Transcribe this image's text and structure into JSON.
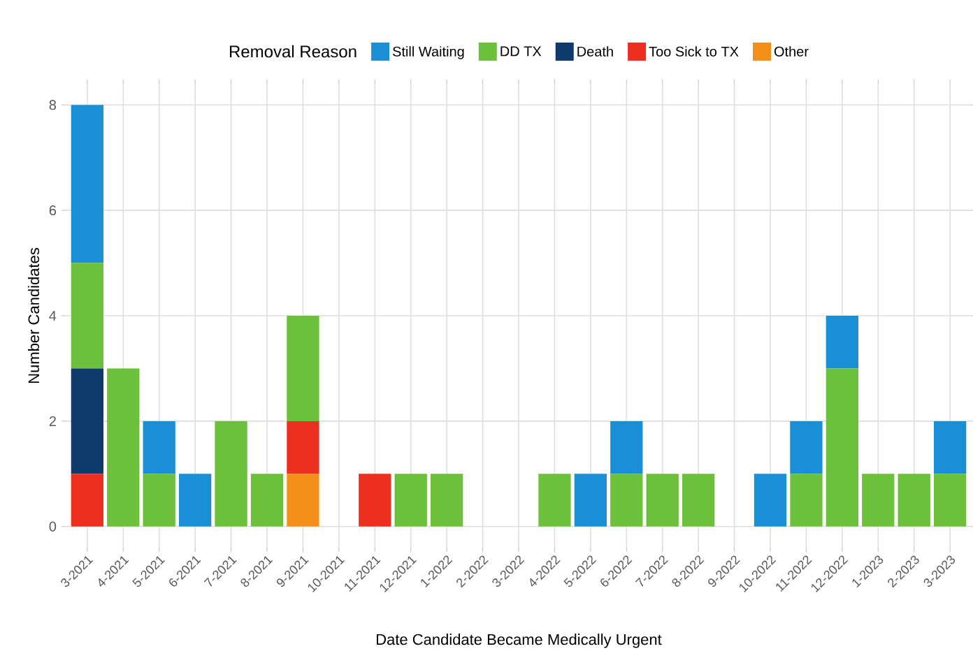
{
  "chart_data": {
    "type": "bar",
    "stacked": true,
    "xlabel": "Date Candidate Became Medically Urgent",
    "ylabel": "Number Candidates",
    "legend_title": "Removal Reason",
    "legend": "top",
    "grid": true,
    "categories": [
      "3-2021",
      "4-2021",
      "5-2021",
      "6-2021",
      "7-2021",
      "8-2021",
      "9-2021",
      "10-2021",
      "11-2021",
      "12-2021",
      "1-2022",
      "2-2022",
      "3-2022",
      "4-2022",
      "5-2022",
      "6-2022",
      "7-2022",
      "8-2022",
      "9-2022",
      "10-2022",
      "11-2022",
      "12-2022",
      "1-2023",
      "2-2023",
      "3-2023"
    ],
    "ylim": [
      -0.4,
      8.4
    ],
    "yticks": [
      0,
      2,
      4,
      6,
      8
    ],
    "series": [
      {
        "name": "Other",
        "color": "#f4901a",
        "values": [
          0,
          0,
          0,
          0,
          0,
          0,
          1,
          0,
          0,
          0,
          0,
          0,
          0,
          0,
          0,
          0,
          0,
          0,
          0,
          0,
          0,
          0,
          0,
          0,
          0
        ]
      },
      {
        "name": "Too Sick to TX",
        "color": "#ec2f1f",
        "values": [
          1,
          0,
          0,
          0,
          0,
          0,
          1,
          0,
          1,
          0,
          0,
          0,
          0,
          0,
          0,
          0,
          0,
          0,
          0,
          0,
          0,
          0,
          0,
          0,
          0
        ]
      },
      {
        "name": "Death",
        "color": "#0f3a6b",
        "values": [
          2,
          0,
          0,
          0,
          0,
          0,
          0,
          0,
          0,
          0,
          0,
          0,
          0,
          0,
          0,
          0,
          0,
          0,
          0,
          0,
          0,
          0,
          0,
          0,
          0
        ]
      },
      {
        "name": "DD TX",
        "color": "#6cc03c",
        "values": [
          2,
          3,
          1,
          0,
          2,
          1,
          2,
          0,
          0,
          1,
          1,
          0,
          0,
          1,
          0,
          1,
          1,
          1,
          0,
          0,
          1,
          3,
          1,
          1,
          1
        ]
      },
      {
        "name": "Still Waiting",
        "color": "#1a8fd6",
        "values": [
          3,
          0,
          1,
          1,
          0,
          0,
          0,
          0,
          0,
          0,
          0,
          0,
          0,
          0,
          1,
          1,
          0,
          0,
          0,
          1,
          1,
          1,
          0,
          0,
          1
        ]
      }
    ]
  }
}
